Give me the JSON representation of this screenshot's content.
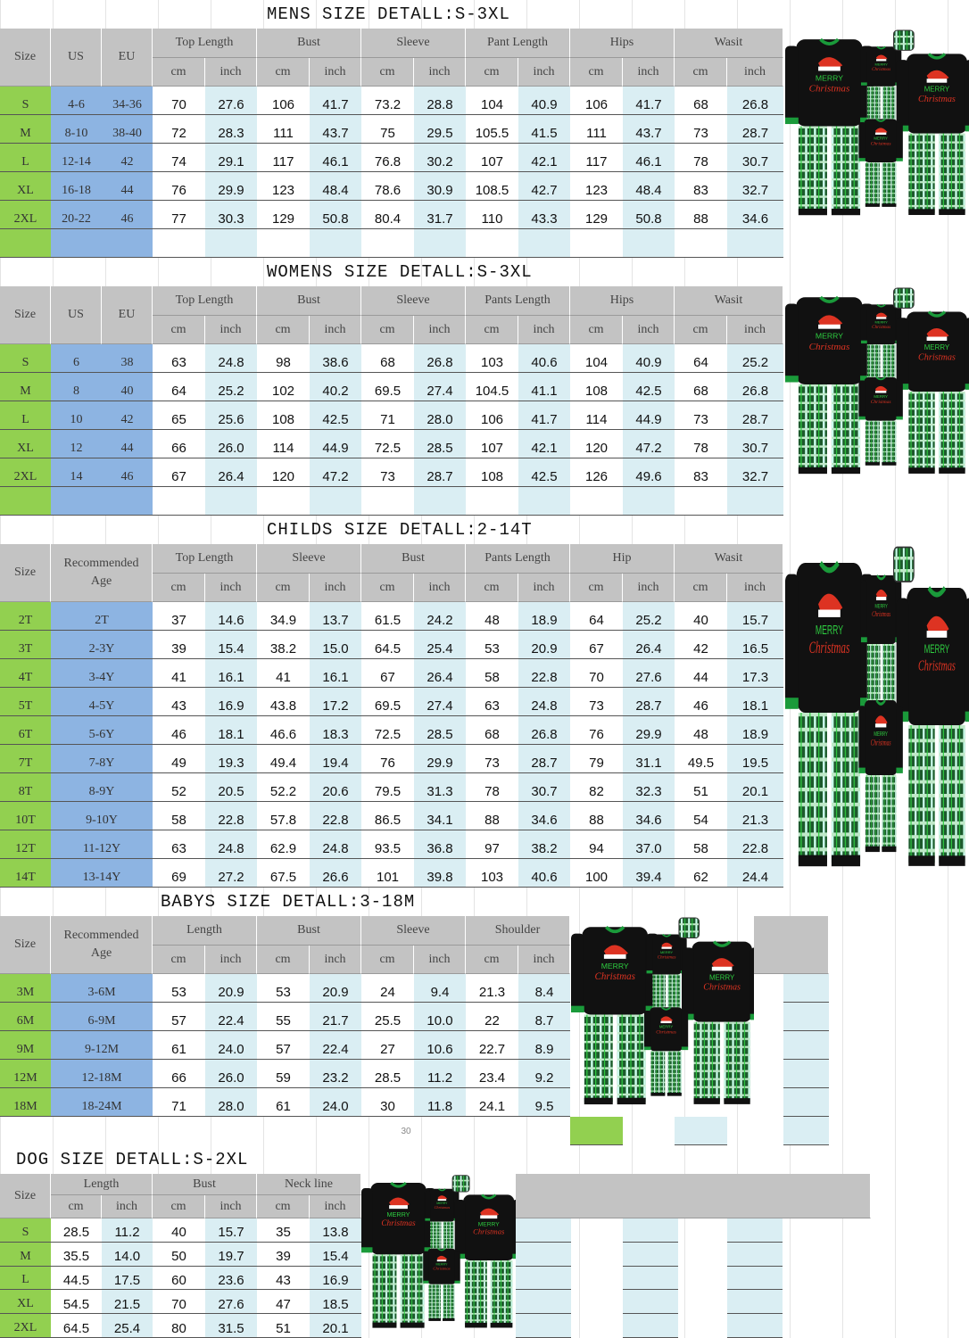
{
  "colors": {
    "header": "#c3c3c3",
    "size_column": "#92d050",
    "age_column": "#8db4e2",
    "inch_column": "#daeef3"
  },
  "units": {
    "cm": "cm",
    "inch": "inch"
  },
  "sections": {
    "mens": {
      "title": "MENS SIZE DETALL:S-3XL",
      "fixed_headers": [
        "Size",
        "US",
        "EU"
      ],
      "groups": [
        "Top Length",
        "Bust",
        "Sleeve",
        "Pant Length",
        "Hips",
        "Wasit"
      ],
      "rows": [
        [
          "S",
          "4-6",
          "34-36",
          "70",
          "27.6",
          "106",
          "41.7",
          "73.2",
          "28.8",
          "104",
          "40.9",
          "106",
          "41.7",
          "68",
          "26.8"
        ],
        [
          "M",
          "8-10",
          "38-40",
          "72",
          "28.3",
          "111",
          "43.7",
          "75",
          "29.5",
          "105.5",
          "41.5",
          "111",
          "43.7",
          "73",
          "28.7"
        ],
        [
          "L",
          "12-14",
          "42",
          "74",
          "29.1",
          "117",
          "46.1",
          "76.8",
          "30.2",
          "107",
          "42.1",
          "117",
          "46.1",
          "78",
          "30.7"
        ],
        [
          "XL",
          "16-18",
          "44",
          "76",
          "29.9",
          "123",
          "48.4",
          "78.6",
          "30.9",
          "108.5",
          "42.7",
          "123",
          "48.4",
          "83",
          "32.7"
        ],
        [
          "2XL",
          "20-22",
          "46",
          "77",
          "30.3",
          "129",
          "50.8",
          "80.4",
          "31.7",
          "110",
          "43.3",
          "129",
          "50.8",
          "88",
          "34.6"
        ]
      ]
    },
    "womens": {
      "title": "WOMENS SIZE DETALL:S-3XL",
      "fixed_headers": [
        "Size",
        "US",
        "EU"
      ],
      "groups": [
        "Top Length",
        "Bust",
        "Sleeve",
        "Pants Length",
        "Hips",
        "Wasit"
      ],
      "rows": [
        [
          "S",
          "6",
          "38",
          "63",
          "24.8",
          "98",
          "38.6",
          "68",
          "26.8",
          "103",
          "40.6",
          "104",
          "40.9",
          "64",
          "25.2"
        ],
        [
          "M",
          "8",
          "40",
          "64",
          "25.2",
          "102",
          "40.2",
          "69.5",
          "27.4",
          "104.5",
          "41.1",
          "108",
          "42.5",
          "68",
          "26.8"
        ],
        [
          "L",
          "10",
          "42",
          "65",
          "25.6",
          "108",
          "42.5",
          "71",
          "28.0",
          "106",
          "41.7",
          "114",
          "44.9",
          "73",
          "28.7"
        ],
        [
          "XL",
          "12",
          "44",
          "66",
          "26.0",
          "114",
          "44.9",
          "72.5",
          "28.5",
          "107",
          "42.1",
          "120",
          "47.2",
          "78",
          "30.7"
        ],
        [
          "2XL",
          "14",
          "46",
          "67",
          "26.4",
          "120",
          "47.2",
          "73",
          "28.7",
          "108",
          "42.5",
          "126",
          "49.6",
          "83",
          "32.7"
        ]
      ]
    },
    "childs": {
      "title": "CHILDS SIZE DETALL:2-14T",
      "fixed_headers": [
        "Size",
        "Recommended Age"
      ],
      "groups": [
        "Top Length",
        "Sleeve",
        "Bust",
        "Pants Length",
        "Hip",
        "Wasit"
      ],
      "rows": [
        [
          "2T",
          "2T",
          "37",
          "14.6",
          "34.9",
          "13.7",
          "61.5",
          "24.2",
          "48",
          "18.9",
          "64",
          "25.2",
          "40",
          "15.7"
        ],
        [
          "3T",
          "2-3Y",
          "39",
          "15.4",
          "38.2",
          "15.0",
          "64.5",
          "25.4",
          "53",
          "20.9",
          "67",
          "26.4",
          "42",
          "16.5"
        ],
        [
          "4T",
          "3-4Y",
          "41",
          "16.1",
          "41",
          "16.1",
          "67",
          "26.4",
          "58",
          "22.8",
          "70",
          "27.6",
          "44",
          "17.3"
        ],
        [
          "5T",
          "4-5Y",
          "43",
          "16.9",
          "43.8",
          "17.2",
          "69.5",
          "27.4",
          "63",
          "24.8",
          "73",
          "28.7",
          "46",
          "18.1"
        ],
        [
          "6T",
          "5-6Y",
          "46",
          "18.1",
          "46.6",
          "18.3",
          "72.5",
          "28.5",
          "68",
          "26.8",
          "76",
          "29.9",
          "48",
          "18.9"
        ],
        [
          "7T",
          "7-8Y",
          "49",
          "19.3",
          "49.4",
          "19.4",
          "76",
          "29.9",
          "73",
          "28.7",
          "79",
          "31.1",
          "49.5",
          "19.5"
        ],
        [
          "8T",
          "8-9Y",
          "52",
          "20.5",
          "52.2",
          "20.6",
          "79.5",
          "31.3",
          "78",
          "30.7",
          "82",
          "32.3",
          "51",
          "20.1"
        ],
        [
          "10T",
          "9-10Y",
          "58",
          "22.8",
          "57.8",
          "22.8",
          "86.5",
          "34.1",
          "88",
          "34.6",
          "88",
          "34.6",
          "54",
          "21.3"
        ],
        [
          "12T",
          "11-12Y",
          "63",
          "24.8",
          "62.9",
          "24.8",
          "93.5",
          "36.8",
          "97",
          "38.2",
          "94",
          "37.0",
          "58",
          "22.8"
        ],
        [
          "14T",
          "13-14Y",
          "69",
          "27.2",
          "67.5",
          "26.6",
          "101",
          "39.8",
          "103",
          "40.6",
          "100",
          "39.4",
          "62",
          "24.4"
        ]
      ]
    },
    "babys": {
      "title": "BABYS SIZE DETALL:3-18M",
      "fixed_headers": [
        "Size",
        "Recommended Age"
      ],
      "groups": [
        "Length",
        "Bust",
        "Sleeve",
        "Shoulder"
      ],
      "rows": [
        [
          "3M",
          "3-6M",
          "53",
          "20.9",
          "53",
          "20.9",
          "24",
          "9.4",
          "21.3",
          "8.4"
        ],
        [
          "6M",
          "6-9M",
          "57",
          "22.4",
          "55",
          "21.7",
          "25.5",
          "10.0",
          "22",
          "8.7"
        ],
        [
          "9M",
          "9-12M",
          "61",
          "24.0",
          "57",
          "22.4",
          "27",
          "10.6",
          "22.7",
          "8.9"
        ],
        [
          "12M",
          "12-18M",
          "66",
          "26.0",
          "59",
          "23.2",
          "28.5",
          "11.2",
          "23.4",
          "9.2"
        ],
        [
          "18M",
          "18-24M",
          "71",
          "28.0",
          "61",
          "24.0",
          "30",
          "11.8",
          "24.1",
          "9.5"
        ]
      ],
      "footnote": "30"
    },
    "dog": {
      "title": "DOG SIZE DETALL:S-2XL",
      "fixed_headers": [
        "Size"
      ],
      "groups": [
        "Length",
        "Bust",
        "Neck line"
      ],
      "rows": [
        [
          "S",
          "28.5",
          "11.2",
          "40",
          "15.7",
          "35",
          "13.8"
        ],
        [
          "M",
          "35.5",
          "14.0",
          "50",
          "19.7",
          "39",
          "15.4"
        ],
        [
          "L",
          "44.5",
          "17.5",
          "60",
          "23.6",
          "43",
          "16.9"
        ],
        [
          "XL",
          "54.5",
          "21.5",
          "70",
          "27.6",
          "47",
          "18.5"
        ],
        [
          "2XL",
          "64.5",
          "25.4",
          "80",
          "31.5",
          "51",
          "20.1"
        ]
      ]
    }
  },
  "product_image": {
    "label": "family christmas pajama set",
    "print_text": "MERRY Christmas"
  }
}
